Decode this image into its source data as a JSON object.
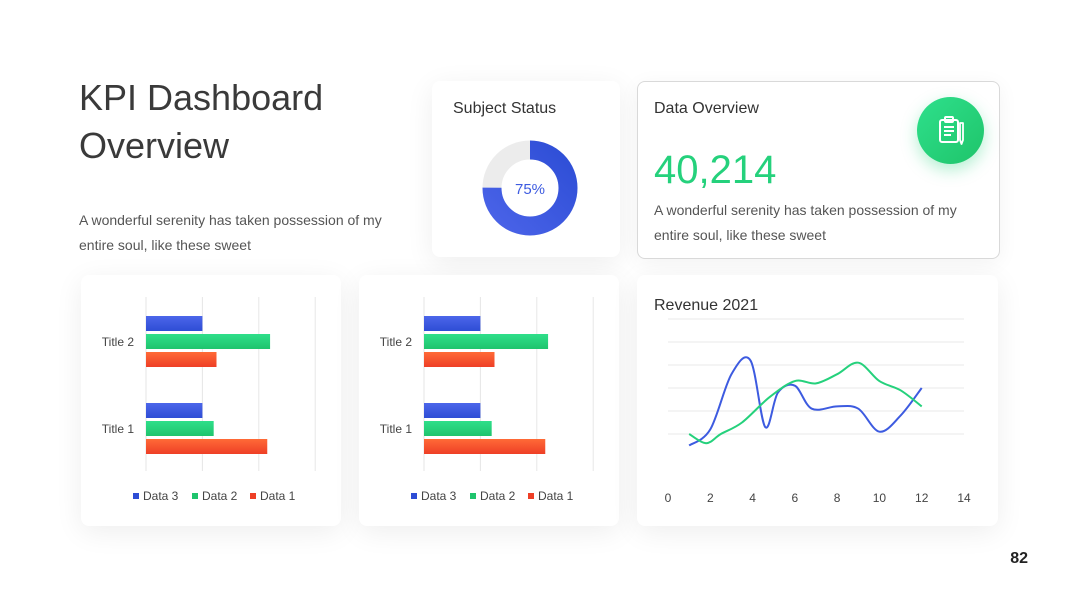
{
  "header": {
    "title_line1": "KPI Dashboard",
    "title_line2": "Overview",
    "description": "A wonderful serenity has taken possession of my entire soul, like these sweet"
  },
  "subject_status": {
    "title": "Subject Status",
    "percent_label": "75%",
    "percent_value": 75
  },
  "data_overview": {
    "title": "Data Overview",
    "value": "40,214",
    "description": "A wonderful serenity has taken possession of my entire soul, like these sweet",
    "icon": "clipboard-icon"
  },
  "colors": {
    "blue": "#3d5be0",
    "green": "#25d17c",
    "red": "#f4522e",
    "ring_track": "#ececec"
  },
  "page_number": "82",
  "chart_data": [
    {
      "type": "bar",
      "orientation": "horizontal",
      "categories": [
        "Title 1",
        "Title 2"
      ],
      "series": [
        {
          "name": "Data 1",
          "values": [
            4.3,
            2.5
          ]
        },
        {
          "name": "Data 2",
          "values": [
            2.4,
            4.4
          ]
        },
        {
          "name": "Data 3",
          "values": [
            2,
            2
          ]
        }
      ],
      "xlim": [
        0,
        6
      ],
      "grid": true,
      "legend": "bottom"
    },
    {
      "type": "bar",
      "orientation": "horizontal",
      "categories": [
        "Title 1",
        "Title 2"
      ],
      "series": [
        {
          "name": "Data 1",
          "values": [
            4.3,
            2.5
          ]
        },
        {
          "name": "Data 2",
          "values": [
            2.4,
            4.4
          ]
        },
        {
          "name": "Data 3",
          "values": [
            2,
            2
          ]
        }
      ],
      "xlim": [
        0,
        6
      ],
      "grid": true,
      "legend": "bottom"
    },
    {
      "type": "line",
      "title": "Revenue 2021",
      "xlim": [
        0,
        14
      ],
      "ylim": [
        0,
        6
      ],
      "xticks": [
        0,
        2,
        4,
        6,
        8,
        10,
        12,
        14
      ],
      "grid": true,
      "series": [
        {
          "color": "#3d5be0",
          "x": [
            1,
            2,
            3,
            3.9,
            4.6,
            5.2,
            6,
            6.8,
            8,
            9,
            10,
            11,
            12
          ],
          "y": [
            0.5,
            1.2,
            3.6,
            4.2,
            1.3,
            2.8,
            3.1,
            2.1,
            2.2,
            2.1,
            1.1,
            1.8,
            3.0
          ]
        },
        {
          "color": "#25d17c",
          "x": [
            1,
            1.8,
            2.5,
            3.5,
            4.8,
            6,
            7,
            8,
            9,
            10,
            11,
            12
          ],
          "y": [
            1.0,
            0.6,
            1.0,
            1.5,
            2.6,
            3.3,
            3.2,
            3.6,
            4.1,
            3.3,
            2.9,
            2.2
          ]
        }
      ]
    }
  ]
}
